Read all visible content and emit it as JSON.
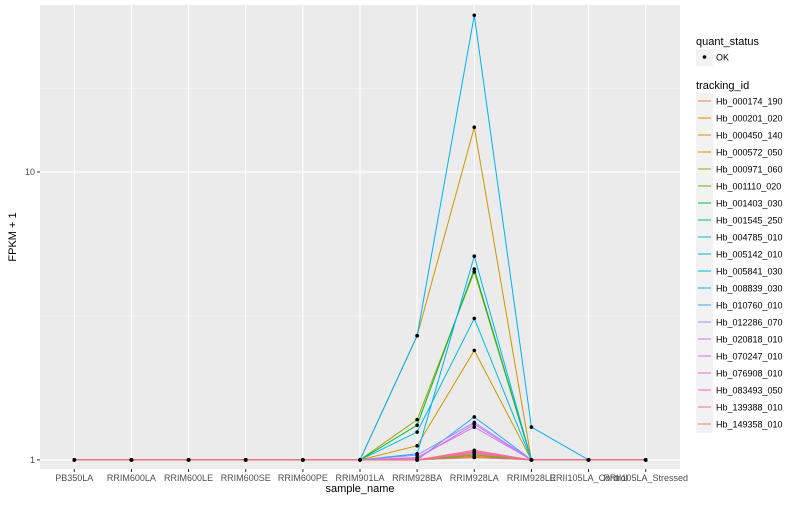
{
  "chart_data": {
    "type": "line",
    "xlabel": "sample_name",
    "ylabel": "FPKM + 1",
    "y_scale": "log10",
    "ylim": [
      0.93,
      38
    ],
    "y_ticks": [
      1,
      10
    ],
    "y_tick_labels": [
      "1",
      "10"
    ],
    "grid": true,
    "legend_placement": "right",
    "categories": [
      "PB350LA",
      "RRIM600LA",
      "RRIM600LE",
      "RRIM600SE",
      "RRIM600PE",
      "RRIM901LA",
      "RRIM928BA",
      "RRIM928LA",
      "RRIM928LE",
      "RRII105LA_Control",
      "RRII105LA_Stressed"
    ],
    "quant_legend": {
      "title": "quant_status",
      "entries": [
        "OK"
      ]
    },
    "tracking_legend_title": "tracking_id",
    "series": [
      {
        "name": "Hb_000174_190",
        "color": "#F8766D",
        "values": [
          1,
          1,
          1,
          1,
          1,
          1,
          1.0,
          1.05,
          1,
          1,
          1
        ]
      },
      {
        "name": "Hb_000201_020",
        "color": "#E58700",
        "values": [
          1,
          1,
          1,
          1,
          1,
          1,
          1.0,
          1.03,
          1,
          1,
          1
        ]
      },
      {
        "name": "Hb_000450_140",
        "color": "#C99800",
        "values": [
          1,
          1,
          1,
          1,
          1,
          1,
          2.7,
          14.3,
          1,
          1,
          1
        ]
      },
      {
        "name": "Hb_000572_050",
        "color": "#C99800",
        "values": [
          1,
          1,
          1,
          1,
          1,
          1,
          1.12,
          2.4,
          1,
          1,
          1
        ]
      },
      {
        "name": "Hb_000971_060",
        "color": "#A3A500",
        "values": [
          1,
          1,
          1,
          1,
          1,
          1,
          1.38,
          4.5,
          1,
          1,
          1
        ]
      },
      {
        "name": "Hb_001110_020",
        "color": "#6BB100",
        "values": [
          1,
          1,
          1,
          1,
          1,
          1,
          1.0,
          1.04,
          1,
          1,
          1
        ]
      },
      {
        "name": "Hb_001403_030",
        "color": "#00BA38",
        "values": [
          1,
          1,
          1,
          1,
          1,
          1,
          1.32,
          4.6,
          1,
          1,
          1
        ]
      },
      {
        "name": "Hb_001545_250",
        "color": "#00BF7D",
        "values": [
          1,
          1,
          1,
          1,
          1,
          1,
          1.0,
          1.02,
          1,
          1,
          1
        ]
      },
      {
        "name": "Hb_004785_010",
        "color": "#00C0AF",
        "values": [
          1,
          1,
          1,
          1,
          1,
          1,
          1.0,
          1.06,
          1,
          1,
          1
        ]
      },
      {
        "name": "Hb_005142_010",
        "color": "#00BCD8",
        "values": [
          1,
          1,
          1,
          1,
          1,
          1,
          1.25,
          3.1,
          1,
          1,
          1
        ]
      },
      {
        "name": "Hb_005841_030",
        "color": "#00B0F6",
        "values": [
          1,
          1,
          1,
          1,
          1,
          1,
          2.7,
          35.0,
          1.3,
          1,
          1
        ]
      },
      {
        "name": "Hb_008839_030",
        "color": "#00B0F6",
        "values": [
          1,
          1,
          1,
          1,
          1,
          1,
          1.05,
          5.1,
          1,
          1,
          1
        ]
      },
      {
        "name": "Hb_010760_010",
        "color": "#35A2FF",
        "values": [
          1,
          1,
          1,
          1,
          1,
          1,
          1.0,
          1.41,
          1,
          1,
          1
        ]
      },
      {
        "name": "Hb_012286_070",
        "color": "#9590FF",
        "values": [
          1,
          1,
          1,
          1,
          1,
          1,
          1.04,
          1.35,
          1,
          1,
          1
        ]
      },
      {
        "name": "Hb_020818_010",
        "color": "#C77CFF",
        "values": [
          1,
          1,
          1,
          1,
          1,
          1,
          1.02,
          1.3,
          1,
          1,
          1
        ]
      },
      {
        "name": "Hb_070247_010",
        "color": "#E76BF3",
        "values": [
          1,
          1,
          1,
          1,
          1,
          1,
          1.01,
          1.33,
          1,
          1,
          1
        ]
      },
      {
        "name": "Hb_076908_010",
        "color": "#FA62DB",
        "values": [
          1,
          1,
          1,
          1,
          1,
          1,
          1.0,
          1.06,
          1,
          1,
          1
        ]
      },
      {
        "name": "Hb_083493_050",
        "color": "#FF62BC",
        "values": [
          1,
          1,
          1,
          1,
          1,
          1,
          1.0,
          1.08,
          1,
          1,
          1
        ]
      },
      {
        "name": "Hb_139388_010",
        "color": "#FF6C91",
        "values": [
          1,
          1,
          1,
          1,
          1,
          1,
          1.0,
          1.02,
          1,
          1,
          1
        ]
      },
      {
        "name": "Hb_149358_010",
        "color": "#F8766D",
        "values": [
          1,
          1,
          1,
          1,
          1,
          1,
          1.0,
          1.07,
          1,
          1,
          1
        ]
      }
    ]
  }
}
